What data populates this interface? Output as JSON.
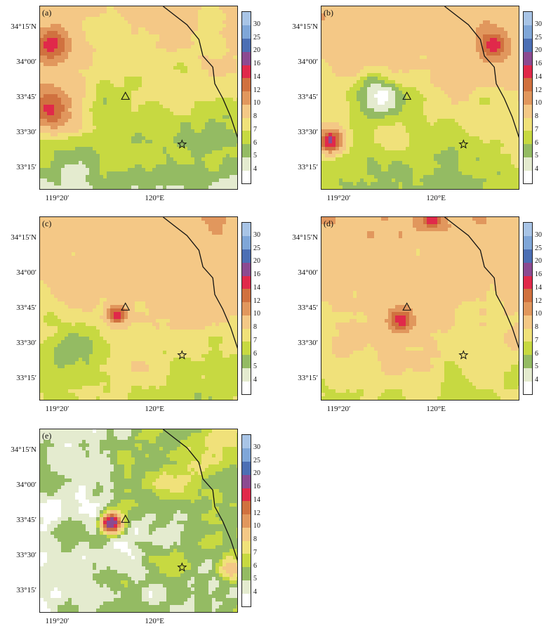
{
  "panels": [
    {
      "label": "(a)",
      "variant": "a"
    },
    {
      "label": "(b)",
      "variant": "b"
    },
    {
      "label": "(c)",
      "variant": "c"
    },
    {
      "label": "(d)",
      "variant": "d"
    },
    {
      "label": "(e)",
      "variant": "e"
    }
  ],
  "y_ticks": [
    "34°15′N",
    "34°00′",
    "33°45′",
    "33°30′",
    "33°15′"
  ],
  "x_ticks": [
    "119°20′",
    "120°E"
  ],
  "colorbar": {
    "levels": [
      "4",
      "5",
      "6",
      "7",
      "8",
      "10",
      "12",
      "14",
      "16",
      "20",
      "25",
      "30"
    ],
    "colors": [
      "#ffffff",
      "#e4ebcf",
      "#94bb63",
      "#c7d941",
      "#f0e17a",
      "#f4c886",
      "#e1975d",
      "#d0713f",
      "#e0294a",
      "#8c4a91",
      "#4c6fb4",
      "#7fa6d8",
      "#a8c4e6"
    ]
  },
  "markers": {
    "triangle": "triangle",
    "star": "star"
  }
}
